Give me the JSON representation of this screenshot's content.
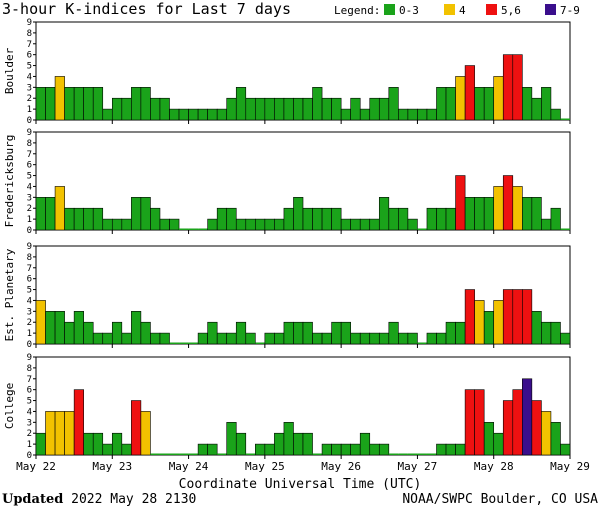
{
  "title": "3-hour K-indices for Last 7 days",
  "legend": {
    "label": "Legend:",
    "items": [
      {
        "label": "0-3",
        "color": "#1aa31a"
      },
      {
        "label": "4",
        "color": "#f2c200"
      },
      {
        "label": "5,6",
        "color": "#ee1111"
      },
      {
        "label": "7-9",
        "color": "#3a0e8c"
      }
    ]
  },
  "footer": {
    "updated_label": "Updated",
    "updated_value": "2022 May 28 2130",
    "credit": "NOAA/SWPC Boulder, CO USA"
  },
  "chart_data": {
    "type": "bar",
    "xlabel": "Coordinate Universal Time (UTC)",
    "x_ticks": [
      "May 22",
      "May 23",
      "May 24",
      "May 25",
      "May 26",
      "May 27",
      "May 28",
      "May 29"
    ],
    "y_ticks": [
      "0",
      "1",
      "2",
      "3",
      "4",
      "5",
      "6",
      "7",
      "8",
      "9"
    ],
    "ylim": [
      0,
      9
    ],
    "bin_hours": 3,
    "grid": false,
    "series": [
      {
        "name": "Boulder",
        "values": [
          3,
          3,
          4,
          3,
          3,
          3,
          3,
          1,
          2,
          2,
          3,
          3,
          2,
          2,
          1,
          1,
          1,
          1,
          1,
          1,
          2,
          3,
          2,
          2,
          2,
          2,
          2,
          2,
          2,
          3,
          2,
          2,
          1,
          2,
          1,
          2,
          2,
          3,
          1,
          1,
          1,
          1,
          3,
          3,
          4,
          5,
          3,
          3,
          4,
          6,
          6,
          3,
          2,
          3,
          1,
          0
        ]
      },
      {
        "name": "Fredericksburg",
        "values": [
          3,
          3,
          4,
          2,
          2,
          2,
          2,
          1,
          1,
          1,
          3,
          3,
          2,
          1,
          1,
          0,
          0,
          0,
          1,
          2,
          2,
          1,
          1,
          1,
          1,
          1,
          2,
          3,
          2,
          2,
          2,
          2,
          1,
          1,
          1,
          1,
          3,
          2,
          2,
          1,
          0,
          2,
          2,
          2,
          5,
          3,
          3,
          3,
          4,
          5,
          4,
          3,
          3,
          1,
          2,
          0
        ]
      },
      {
        "name": "Est. Planetary",
        "values": [
          4,
          3,
          3,
          2,
          3,
          2,
          1,
          1,
          2,
          1,
          3,
          2,
          1,
          1,
          0,
          0,
          0,
          1,
          2,
          1,
          1,
          2,
          1,
          0,
          1,
          1,
          2,
          2,
          2,
          1,
          1,
          2,
          2,
          1,
          1,
          1,
          1,
          2,
          1,
          1,
          0,
          1,
          1,
          2,
          2,
          5,
          4,
          3,
          4,
          5,
          5,
          5,
          3,
          2,
          2,
          1
        ]
      },
      {
        "name": "College",
        "values": [
          2,
          4,
          4,
          4,
          6,
          2,
          2,
          1,
          2,
          1,
          5,
          4,
          0,
          0,
          0,
          0,
          0,
          1,
          1,
          0,
          3,
          2,
          0,
          1,
          1,
          2,
          3,
          2,
          2,
          0,
          1,
          1,
          1,
          1,
          2,
          1,
          1,
          0,
          0,
          0,
          0,
          0,
          1,
          1,
          1,
          6,
          6,
          3,
          2,
          5,
          6,
          7,
          5,
          4,
          3,
          1
        ]
      }
    ]
  }
}
